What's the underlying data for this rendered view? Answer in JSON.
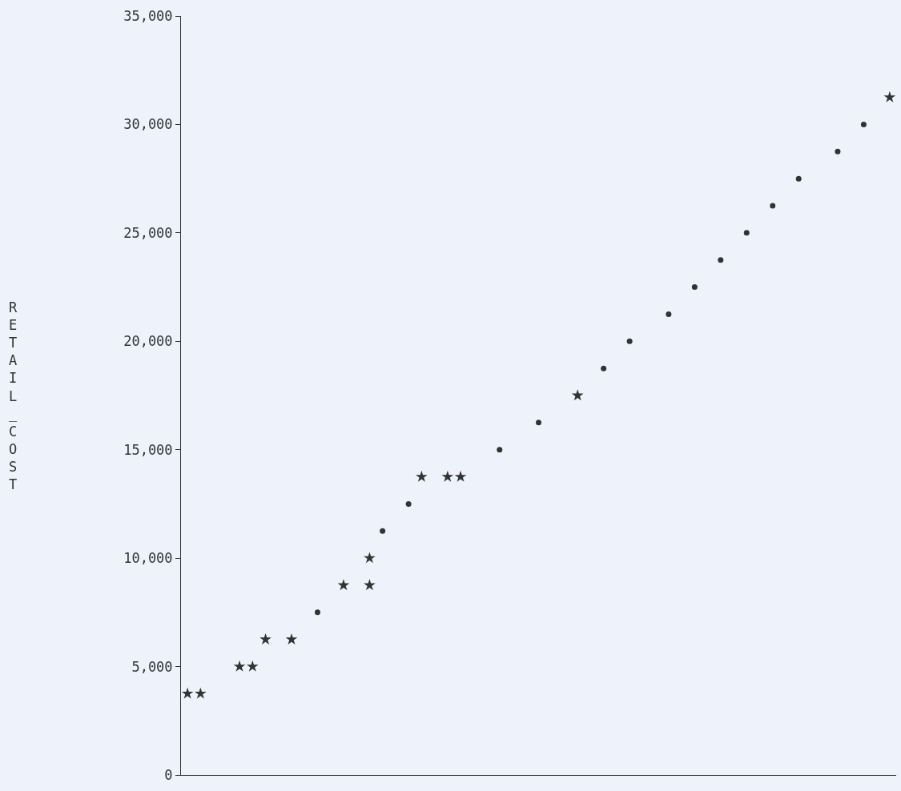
{
  "chart_data": {
    "type": "scatter",
    "ylabel": "RETAIL_COST",
    "categories": [
      null,
      null,
      null,
      null,
      null,
      null,
      null,
      null,
      null,
      null,
      null,
      null,
      null,
      null,
      null,
      null,
      null,
      null,
      null,
      null,
      null,
      null,
      null,
      null,
      null,
      null,
      null,
      null,
      null,
      null,
      null,
      null,
      null,
      null,
      null,
      null,
      null,
      null,
      null,
      null,
      null,
      null,
      null,
      null,
      null,
      null,
      null,
      null,
      null,
      null,
      null,
      null,
      null,
      null,
      null
    ],
    "series": [
      {
        "color": "#333333",
        "marker": "star",
        "values": [
          3750,
          3750,
          null,
          null,
          5000,
          5000,
          6250,
          null,
          6250,
          null,
          null,
          null,
          8750,
          null,
          8750,
          null,
          null,
          null,
          13750,
          null,
          13750,
          13750,
          null,
          null,
          null,
          null,
          null,
          null,
          null,
          null,
          17500,
          null,
          null,
          null,
          null,
          null,
          null,
          null,
          null,
          null,
          null,
          null,
          null,
          null,
          null,
          null,
          null,
          null,
          null,
          null,
          null,
          null,
          null,
          null,
          31250
        ]
      },
      {
        "color": "#333333",
        "marker": "star",
        "values": [
          null,
          null,
          null,
          null,
          null,
          null,
          null,
          null,
          null,
          null,
          null,
          null,
          null,
          null,
          10000,
          null,
          null,
          null,
          null,
          null,
          null,
          null,
          null,
          null,
          null,
          null,
          null,
          null,
          null,
          null,
          null,
          null,
          null,
          null,
          null,
          null,
          null,
          null,
          null,
          null,
          null,
          null,
          null,
          null,
          null,
          null,
          null,
          null,
          null,
          null,
          null,
          null,
          null,
          null,
          null
        ]
      },
      {
        "color": "#333333",
        "marker": "circle",
        "values": [
          null,
          null,
          null,
          null,
          null,
          null,
          null,
          null,
          null,
          null,
          7500,
          null,
          null,
          null,
          null,
          11250,
          null,
          12500,
          null,
          null,
          null,
          null,
          null,
          null,
          15000,
          null,
          null,
          16250,
          null,
          null,
          null,
          null,
          18750,
          null,
          20000,
          null,
          null,
          21250,
          null,
          22500,
          null,
          23750,
          null,
          25000,
          null,
          26250,
          null,
          27500,
          null,
          null,
          28750,
          null,
          30000,
          null,
          null
        ]
      }
    ],
    "ylim": [
      0,
      35000
    ],
    "yticks": [
      0,
      {
        "value": 5000,
        "label": "5,000"
      },
      {
        "value": 10000,
        "label": "10,000"
      },
      {
        "value": 15000,
        "label": "15,000"
      },
      {
        "value": 20000,
        "label": "20,000"
      },
      {
        "value": 25000,
        "label": "25,000"
      },
      {
        "value": 30000,
        "label": "30,000"
      },
      {
        "value": 35000,
        "label": "35,000"
      }
    ],
    "grid": false
  }
}
